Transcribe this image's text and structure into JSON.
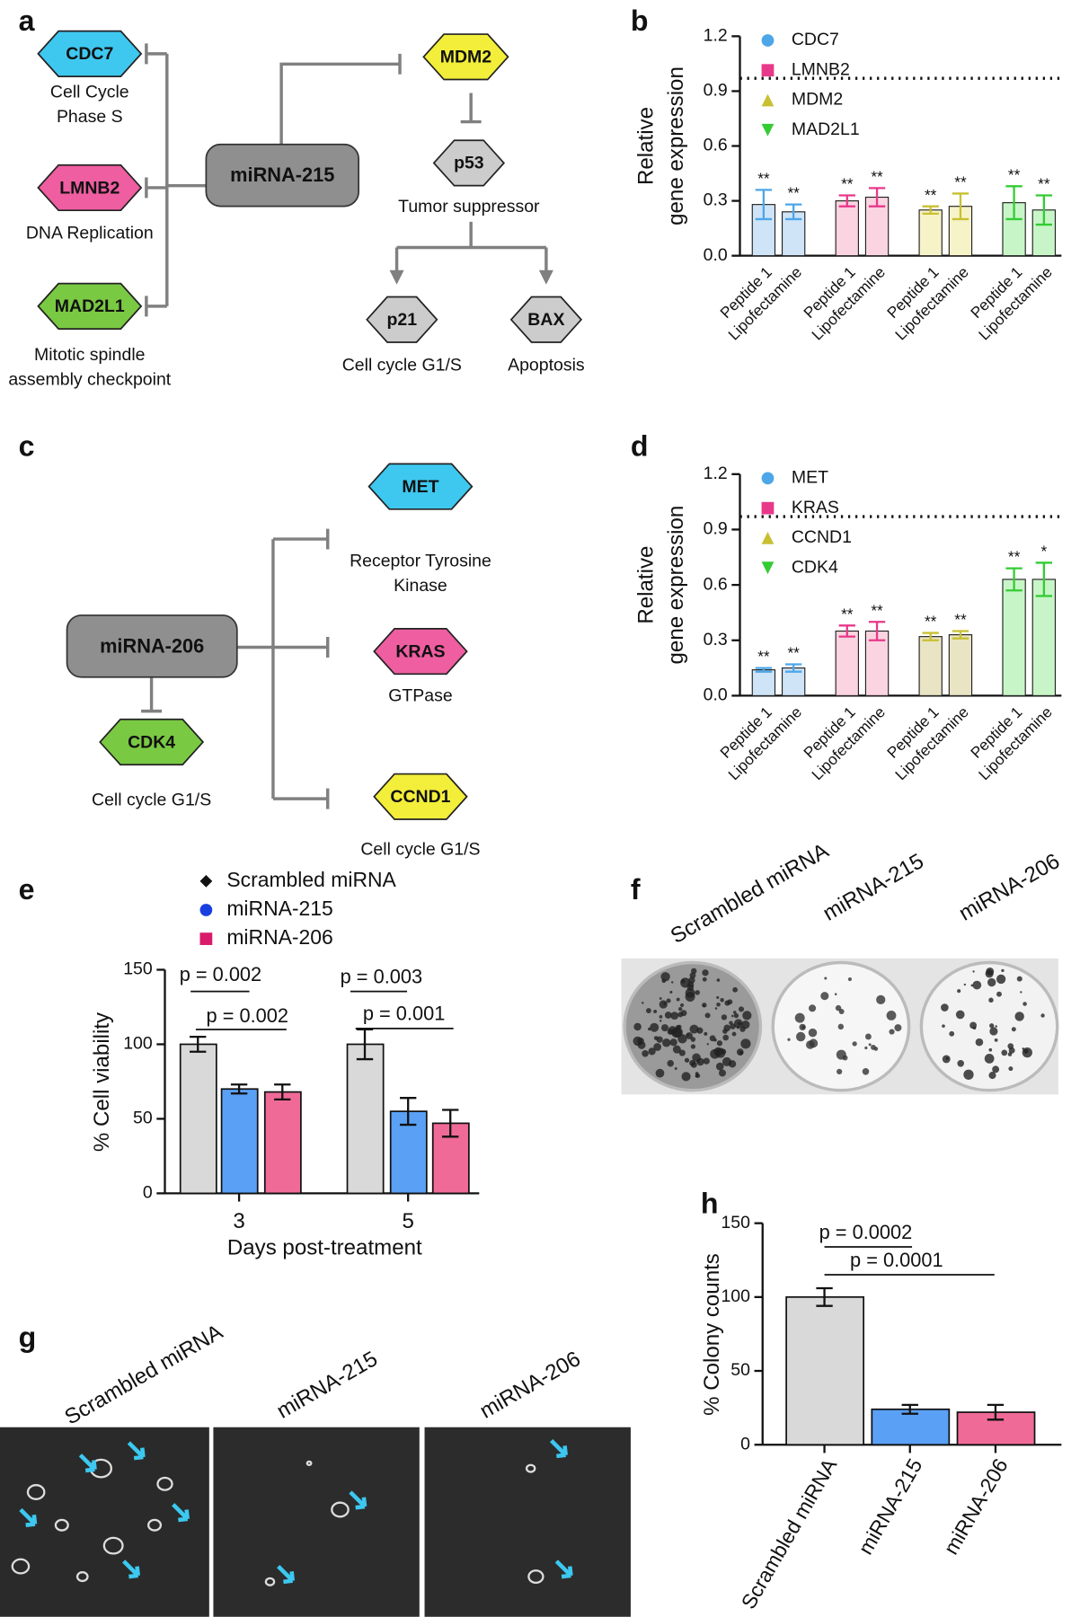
{
  "panel_labels": [
    "a",
    "b",
    "c",
    "d",
    "e",
    "f",
    "g",
    "h"
  ],
  "diagram_a": {
    "hub": "miRNA-215",
    "nodes": [
      {
        "label": "CDC7",
        "color": "#3ec8f0",
        "caption": [
          "Cell Cycle",
          "Phase S"
        ]
      },
      {
        "label": "LMNB2",
        "color": "#ee5ea0",
        "caption": [
          "DNA Replication"
        ]
      },
      {
        "label": "MAD2L1",
        "color": "#7ac943",
        "caption": [
          "Mitotic spindle",
          "assembly checkpoint"
        ]
      },
      {
        "label": "MDM2",
        "color": "#f2ee3a"
      },
      {
        "label": "p53",
        "color": "#cccccc",
        "caption": [
          "Tumor suppressor"
        ]
      },
      {
        "label": "p21",
        "color": "#cccccc",
        "caption": [
          "Cell cycle G1/S"
        ]
      },
      {
        "label": "BAX",
        "color": "#cccccc",
        "caption": [
          "Apoptosis"
        ]
      }
    ]
  },
  "diagram_c": {
    "hub": "miRNA-206",
    "nodes": [
      {
        "label": "MET",
        "color": "#3ec8f0",
        "caption": [
          "Receptor Tyrosine",
          "Kinase"
        ]
      },
      {
        "label": "KRAS",
        "color": "#ee5ea0",
        "caption": [
          "GTPase"
        ]
      },
      {
        "label": "CCND1",
        "color": "#f2ee3a",
        "caption": [
          "Cell cycle G1/S"
        ]
      },
      {
        "label": "CDK4",
        "color": "#7ac943",
        "caption": [
          "Cell cycle G1/S"
        ]
      }
    ]
  },
  "photos": {
    "f": {
      "labels": [
        "Scrambled miRNA",
        "miRNA-215",
        "miRNA-206"
      ]
    },
    "g": {
      "labels": [
        "Scrambled miRNA",
        "miRNA-215",
        "miRNA-206"
      ]
    }
  },
  "chart_data": [
    {
      "type": "grouped_bar",
      "ylabel": [
        "Relative",
        "gene expression"
      ],
      "categories": [
        "Peptide 1",
        "Lipofectamine"
      ],
      "series": [
        {
          "name": "CDC7",
          "color": "#4da6e8",
          "fill": "#cfe4f7",
          "marker": "circle",
          "values": [
            0.28,
            0.24
          ],
          "errors": [
            0.08,
            0.04
          ],
          "annotations": [
            "**",
            "**"
          ]
        },
        {
          "name": "LMNB2",
          "color": "#e8388a",
          "fill": "#fad4e0",
          "marker": "square",
          "values": [
            0.3,
            0.32
          ],
          "errors": [
            0.03,
            0.05
          ],
          "annotations": [
            "**",
            "**"
          ]
        },
        {
          "name": "MDM2",
          "color": "#c8c032",
          "fill": "#f7f3c8",
          "marker": "triangle",
          "values": [
            0.25,
            0.27
          ],
          "errors": [
            0.02,
            0.07
          ],
          "annotations": [
            "**",
            "**"
          ]
        },
        {
          "name": "MAD2L1",
          "color": "#33cc33",
          "fill": "#c8f5c8",
          "marker": "triangle-down",
          "values": [
            0.29,
            0.25
          ],
          "errors": [
            0.09,
            0.08
          ],
          "annotations": [
            "**",
            "**"
          ]
        }
      ],
      "ylim": [
        0,
        1.2
      ],
      "yticks": [
        {
          "value": 0,
          "label": "0.0"
        },
        {
          "value": 0.3,
          "label": "0.3"
        },
        {
          "value": 0.6,
          "label": "0.6"
        },
        {
          "value": 0.9,
          "label": "0.9"
        },
        {
          "value": 1.2,
          "label": "1.2"
        }
      ],
      "reference_line": 0.97
    },
    {
      "type": "grouped_bar",
      "ylabel": [
        "Relative",
        "gene expression"
      ],
      "categories": [
        "Peptide 1",
        "Lipofectamine"
      ],
      "series": [
        {
          "name": "MET",
          "color": "#4da6e8",
          "fill": "#cfe4f7",
          "marker": "circle",
          "values": [
            0.14,
            0.15
          ],
          "errors": [
            0.01,
            0.02
          ],
          "annotations": [
            "**",
            "**"
          ]
        },
        {
          "name": "KRAS",
          "color": "#e8388a",
          "fill": "#fad4e0",
          "marker": "square",
          "values": [
            0.35,
            0.35
          ],
          "errors": [
            0.03,
            0.05
          ],
          "annotations": [
            "**",
            "**"
          ]
        },
        {
          "name": "CCND1",
          "color": "#c8c032",
          "fill": "#e9e4c4",
          "marker": "triangle",
          "values": [
            0.32,
            0.33
          ],
          "errors": [
            0.02,
            0.02
          ],
          "annotations": [
            "**",
            "**"
          ]
        },
        {
          "name": "CDK4",
          "color": "#33cc33",
          "fill": "#c8f5c8",
          "marker": "triangle-down",
          "values": [
            0.63,
            0.63
          ],
          "errors": [
            0.06,
            0.09
          ],
          "annotations": [
            "**",
            "*"
          ]
        }
      ],
      "ylim": [
        0,
        1.2
      ],
      "yticks": [
        {
          "value": 0,
          "label": "0.0"
        },
        {
          "value": 0.3,
          "label": "0.3"
        },
        {
          "value": 0.6,
          "label": "0.6"
        },
        {
          "value": 0.9,
          "label": "0.9"
        },
        {
          "value": 1.2,
          "label": "1.2"
        }
      ],
      "reference_line": 0.97
    },
    {
      "type": "bar",
      "xlabel": "Days post-treatment",
      "ylabel": "% Cell viability",
      "categories": [
        "3",
        "5"
      ],
      "series": [
        {
          "name": "Scrambled miRNA",
          "color": "#d9d9d9",
          "marker_color": "#111111",
          "marker": "diamond",
          "values": [
            100,
            100
          ],
          "errors": [
            5,
            10
          ]
        },
        {
          "name": "miRNA-215",
          "color": "#5aa0f5",
          "marker_color": "#1a3fe0",
          "marker": "circle",
          "values": [
            70,
            55
          ],
          "errors": [
            3,
            9
          ]
        },
        {
          "name": "miRNA-206",
          "color": "#f06a98",
          "marker_color": "#d81b6a",
          "marker": "square",
          "values": [
            68,
            47
          ],
          "errors": [
            5,
            9
          ]
        }
      ],
      "ylim": [
        0,
        150
      ],
      "yticks": [
        0,
        50,
        100,
        150
      ],
      "annotations": [
        "p = 0.002",
        "p = 0.002",
        "p = 0.003",
        "p = 0.001"
      ]
    },
    {
      "type": "bar",
      "ylabel": "% Colony counts",
      "categories": [
        "Scrambled miRNA",
        "miRNA-215",
        "miRNA-206"
      ],
      "values": [
        100,
        24,
        22
      ],
      "errors": [
        6,
        3,
        5
      ],
      "colors": [
        "#d9d9d9",
        "#5aa0f5",
        "#f06a98"
      ],
      "ylim": [
        0,
        150
      ],
      "yticks": [
        0,
        50,
        100,
        150
      ],
      "annotations": [
        "p = 0.0002",
        "p = 0.0001"
      ]
    }
  ]
}
